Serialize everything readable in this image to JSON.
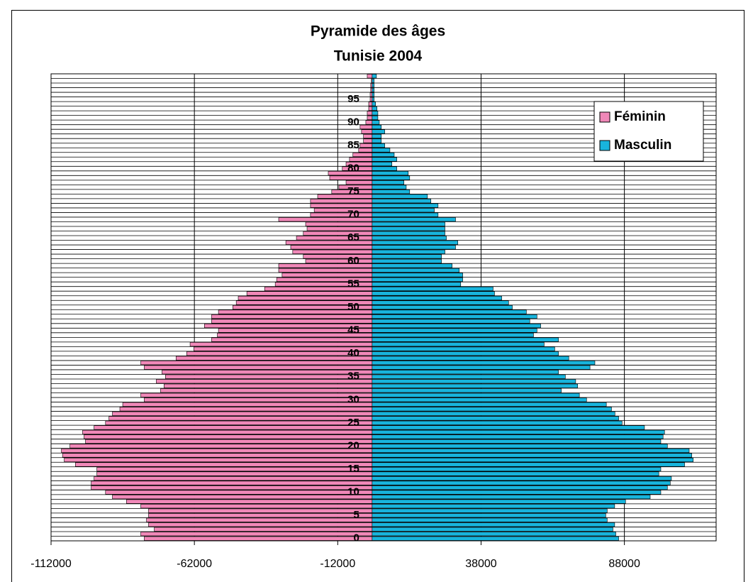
{
  "chart_data": {
    "type": "pyramid",
    "title": [
      "Pyramide des âges",
      "Tunisie 2004"
    ],
    "categories": [
      0,
      null,
      null,
      null,
      null,
      5,
      null,
      null,
      null,
      null,
      10,
      null,
      null,
      null,
      null,
      15,
      null,
      null,
      null,
      null,
      20,
      null,
      null,
      null,
      null,
      25,
      null,
      null,
      null,
      null,
      30,
      null,
      null,
      null,
      null,
      35,
      null,
      null,
      null,
      null,
      40,
      null,
      null,
      null,
      null,
      45,
      null,
      null,
      null,
      null,
      50,
      null,
      null,
      null,
      null,
      55,
      null,
      null,
      null,
      null,
      60,
      null,
      null,
      null,
      null,
      65,
      null,
      null,
      null,
      null,
      70,
      null,
      null,
      null,
      null,
      75,
      null,
      null,
      null,
      null,
      80,
      null,
      null,
      null,
      null,
      85,
      null,
      null,
      null,
      null,
      90,
      null,
      null,
      null,
      null,
      95,
      null,
      null,
      null,
      null,
      null
    ],
    "series": [
      {
        "name": "Féminin",
        "color": "#f088b8",
        "values": [
          -79500,
          -80700,
          -76000,
          -78000,
          -78700,
          -78000,
          -78000,
          -80700,
          -85700,
          -90600,
          -93000,
          -98000,
          -98000,
          -97000,
          -96000,
          -96000,
          -103500,
          -107400,
          -108000,
          -108400,
          -105400,
          -100000,
          -100500,
          -101000,
          -97000,
          -93000,
          -91800,
          -90600,
          -88000,
          -87000,
          -79500,
          -80700,
          -73800,
          -72600,
          -75300,
          -72100,
          -73300,
          -79500,
          -80700,
          -68400,
          -64700,
          -62200,
          -63500,
          -56000,
          -54000,
          -53600,
          -58500,
          -56000,
          -56000,
          -53600,
          -48600,
          -47400,
          -46700,
          -43700,
          -37500,
          -33800,
          -33300,
          -31400,
          -32600,
          -32600,
          -23200,
          -24000,
          -27700,
          -28400,
          -30100,
          -26400,
          -24000,
          -22700,
          -23200,
          -32600,
          -21500,
          -20200,
          -21500,
          -21500,
          -19000,
          -14100,
          -11600,
          -9100,
          -14800,
          -15300,
          -10400,
          -9100,
          -7900,
          -6700,
          -4700,
          -4200,
          -3000,
          -3000,
          -3700,
          -4200,
          -2200,
          -1700,
          -1700,
          -1200,
          -1200,
          -700,
          -700,
          -500,
          -500,
          -250,
          -1700
        ]
      },
      {
        "name": "Masculin",
        "color": "#18b4dc",
        "values": [
          86000,
          85000,
          84000,
          84600,
          82000,
          81500,
          82000,
          84600,
          88400,
          97000,
          100700,
          103000,
          104000,
          104400,
          100000,
          100700,
          109000,
          112000,
          111500,
          110600,
          103000,
          100700,
          101500,
          102000,
          95000,
          87200,
          86000,
          84700,
          83500,
          81700,
          74800,
          72300,
          66000,
          71700,
          71000,
          67400,
          65000,
          76000,
          77700,
          68600,
          65000,
          63700,
          60000,
          65000,
          56300,
          57500,
          58800,
          55000,
          57500,
          53800,
          48900,
          47600,
          45200,
          42700,
          42200,
          30900,
          31600,
          31600,
          30400,
          27900,
          24200,
          24200,
          25400,
          29100,
          29900,
          25900,
          25400,
          25400,
          25400,
          29100,
          23000,
          21700,
          23000,
          20500,
          19300,
          13100,
          11900,
          11100,
          13100,
          12600,
          8600,
          6900,
          8600,
          7700,
          6200,
          4400,
          3200,
          3200,
          4400,
          3200,
          2500,
          2000,
          2000,
          1700,
          1200,
          700,
          700,
          700,
          700,
          700,
          1500
        ]
      }
    ],
    "xlim": [
      -112000,
      120000
    ],
    "xticks": [
      -112000,
      -62000,
      -12000,
      38000,
      88000
    ],
    "grid": true,
    "legend": "upper right"
  }
}
